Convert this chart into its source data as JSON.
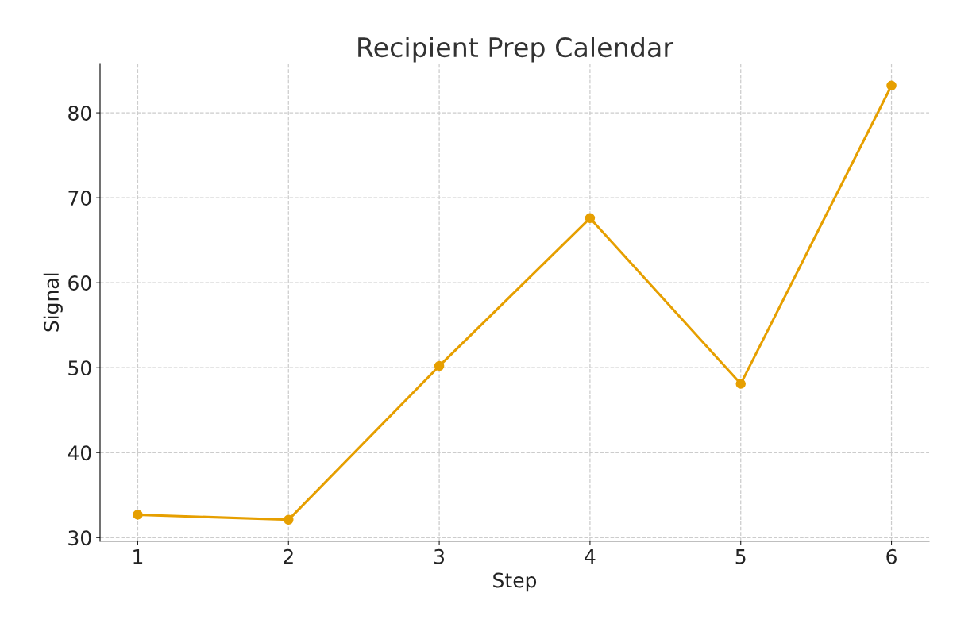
{
  "chart_data": {
    "type": "line",
    "title": "Recipient Prep Calendar",
    "xlabel": "Step",
    "ylabel": "Signal",
    "x": [
      1,
      2,
      3,
      4,
      5,
      6
    ],
    "series": [
      {
        "color": "#e69f00",
        "values": [
          32.7,
          32.1,
          50.2,
          67.6,
          48.1,
          83.2
        ]
      }
    ],
    "xlim": [
      0.75,
      6.25
    ],
    "xticks": [
      1,
      2,
      3,
      4,
      5,
      6
    ],
    "ylim": [
      29.6,
      85.8
    ],
    "yticks": [
      30,
      40,
      50,
      60,
      70,
      80
    ],
    "grid": true,
    "marker": "circle",
    "line_style": "solid"
  }
}
